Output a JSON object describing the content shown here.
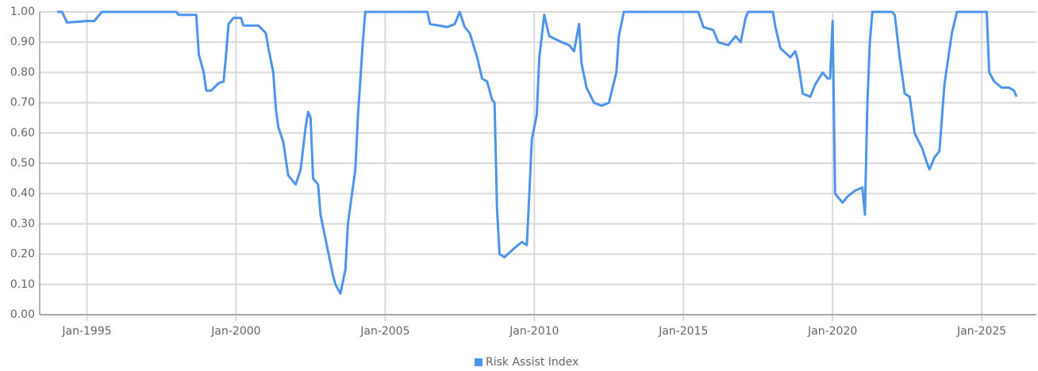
{
  "chart_data": {
    "type": "line",
    "x": [
      "1994-01",
      "1994-03",
      "1994-05",
      "1994-10",
      "1995-01",
      "1995-04",
      "1995-07",
      "1998-01",
      "1998-02",
      "1998-09",
      "1998-10",
      "1998-12",
      "1999-01",
      "1999-03",
      "1999-06",
      "1999-08",
      "1999-09",
      "1999-10",
      "1999-12",
      "2000-03",
      "2000-04",
      "2000-10",
      "2001-01",
      "2001-02",
      "2001-04",
      "2001-05",
      "2001-06",
      "2001-08",
      "2001-10",
      "2002-01",
      "2002-03",
      "2002-05",
      "2002-06",
      "2002-07",
      "2002-08",
      "2002-10",
      "2002-11",
      "2003-01",
      "2003-04",
      "2003-05",
      "2003-07",
      "2003-09",
      "2003-10",
      "2004-01",
      "2004-02",
      "2004-04",
      "2004-05",
      "2006-06",
      "2006-07",
      "2007-02",
      "2007-05",
      "2007-07",
      "2007-09",
      "2007-11",
      "2008-02",
      "2008-04",
      "2008-06",
      "2008-08",
      "2008-09",
      "2008-10",
      "2008-11",
      "2009-01",
      "2009-05",
      "2009-08",
      "2009-10",
      "2009-11",
      "2009-12",
      "2010-02",
      "2010-03",
      "2010-05",
      "2010-07",
      "2010-12",
      "2011-03",
      "2011-05",
      "2011-07",
      "2011-08",
      "2011-10",
      "2012-01",
      "2012-04",
      "2012-07",
      "2012-10",
      "2012-11",
      "2013-01",
      "2015-07",
      "2015-09",
      "2016-01",
      "2016-03",
      "2016-07",
      "2016-10",
      "2016-12",
      "2017-02",
      "2017-03",
      "2018-01",
      "2018-02",
      "2018-04",
      "2018-08",
      "2018-10",
      "2018-11",
      "2019-01",
      "2019-04",
      "2019-06",
      "2019-09",
      "2019-11",
      "2019-12",
      "2020-01",
      "2020-02",
      "2020-05",
      "2020-07",
      "2020-10",
      "2021-01",
      "2021-02",
      "2021-03",
      "2021-04",
      "2021-05",
      "2022-01",
      "2022-02",
      "2022-04",
      "2022-06",
      "2022-08",
      "2022-10",
      "2023-01",
      "2023-03",
      "2023-04",
      "2023-06",
      "2023-08",
      "2023-10",
      "2024-01",
      "2024-03",
      "2025-03",
      "2025-04",
      "2025-06",
      "2025-09",
      "2025-12",
      "2026-02",
      "2026-03"
    ],
    "series": [
      {
        "name": "Risk Assist Index",
        "color": "#4d94ea",
        "values": [
          1.0,
          1.0,
          0.965,
          0.968,
          0.97,
          0.97,
          1.0,
          1.0,
          0.99,
          0.99,
          0.86,
          0.8,
          0.74,
          0.74,
          0.765,
          0.77,
          0.86,
          0.96,
          0.98,
          0.98,
          0.955,
          0.955,
          0.93,
          0.88,
          0.8,
          0.68,
          0.62,
          0.57,
          0.46,
          0.43,
          0.48,
          0.62,
          0.67,
          0.65,
          0.45,
          0.43,
          0.33,
          0.25,
          0.13,
          0.1,
          0.07,
          0.15,
          0.3,
          0.48,
          0.65,
          0.9,
          1.0,
          1.0,
          0.96,
          0.95,
          0.96,
          1.0,
          0.95,
          0.93,
          0.85,
          0.78,
          0.77,
          0.71,
          0.7,
          0.35,
          0.2,
          0.19,
          0.22,
          0.24,
          0.23,
          0.4,
          0.58,
          0.66,
          0.85,
          0.99,
          0.92,
          0.9,
          0.89,
          0.87,
          0.96,
          0.83,
          0.75,
          0.7,
          0.69,
          0.7,
          0.8,
          0.92,
          1.0,
          1.0,
          0.95,
          0.94,
          0.9,
          0.89,
          0.92,
          0.9,
          0.98,
          1.0,
          1.0,
          0.95,
          0.88,
          0.85,
          0.87,
          0.84,
          0.73,
          0.72,
          0.76,
          0.8,
          0.78,
          0.78,
          0.97,
          0.4,
          0.37,
          0.39,
          0.41,
          0.42,
          0.33,
          0.7,
          0.9,
          1.0,
          1.0,
          0.99,
          0.85,
          0.73,
          0.72,
          0.6,
          0.55,
          0.5,
          0.48,
          0.52,
          0.54,
          0.76,
          0.93,
          1.0,
          1.0,
          0.8,
          0.77,
          0.75,
          0.75,
          0.74,
          0.72
        ]
      }
    ],
    "xlim": [
      "1993-06",
      "2026-11"
    ],
    "xticks": [
      {
        "value": "1995-01",
        "label": "Jan-1995"
      },
      {
        "value": "2000-01",
        "label": "Jan-2000"
      },
      {
        "value": "2005-01",
        "label": "Jan-2005"
      },
      {
        "value": "2010-01",
        "label": "Jan-2010"
      },
      {
        "value": "2015-01",
        "label": "Jan-2015"
      },
      {
        "value": "2020-01",
        "label": "Jan-2020"
      },
      {
        "value": "2025-01",
        "label": "Jan-2025"
      }
    ],
    "ylim": [
      0,
      1
    ],
    "yticks": [
      {
        "value": 0,
        "label": "0.00"
      },
      {
        "value": 0.1,
        "label": "0.10"
      },
      {
        "value": 0.2,
        "label": "0.20"
      },
      {
        "value": 0.3,
        "label": "0.30"
      },
      {
        "value": 0.4,
        "label": "0.40"
      },
      {
        "value": 0.5,
        "label": "0.50"
      },
      {
        "value": 0.6,
        "label": "0.60"
      },
      {
        "value": 0.7,
        "label": "0.70"
      },
      {
        "value": 0.8,
        "label": "0.80"
      },
      {
        "value": 0.9,
        "label": "0.90"
      },
      {
        "value": 1,
        "label": "1.00"
      }
    ],
    "grid": true,
    "legend": "bottom"
  }
}
